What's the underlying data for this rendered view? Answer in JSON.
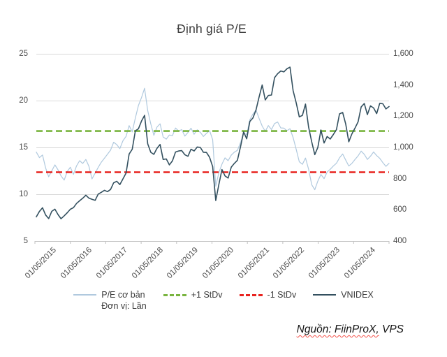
{
  "chart_data": {
    "type": "line",
    "title": "Định giá P/E",
    "x_tick_labels": [
      "01/05/2015",
      "01/05/2016",
      "01/05/2017",
      "01/05/2018",
      "01/05/2019",
      "01/05/2020",
      "01/05/2021",
      "01/05/2022",
      "01/05/2023",
      "01/05/2024"
    ],
    "left_axis": {
      "min": 5,
      "max": 25,
      "ticks": [
        25,
        20,
        15,
        10,
        5
      ],
      "tick_labels": [
        "25",
        "20",
        "15",
        "10",
        "5"
      ]
    },
    "right_axis": {
      "min": 400,
      "max": 1600,
      "ticks": [
        1600,
        1400,
        1200,
        1000,
        800,
        600,
        400
      ],
      "tick_labels": [
        "1,600",
        "1,400",
        "1,200",
        "1,000",
        "800",
        "600",
        "400"
      ]
    },
    "series": [
      {
        "name": "P/E cơ bản",
        "axis": "left",
        "color": "#b0c9de",
        "width": 1.2,
        "values": [
          14.5,
          13.8,
          14.3,
          12.8,
          11.9,
          12.5,
          13.1,
          12.7,
          12.0,
          11.5,
          12.3,
          12.8,
          12.2,
          12.9,
          13.5,
          13.3,
          13.6,
          13.0,
          11.6,
          12.3,
          12.8,
          13.4,
          13.8,
          14.3,
          14.8,
          15.6,
          15.3,
          15.0,
          15.8,
          16.2,
          17.2,
          16.6,
          18.2,
          19.5,
          20.4,
          21.3,
          18.8,
          17.4,
          16.3,
          17.1,
          17.5,
          16.0,
          15.9,
          16.4,
          16.2,
          17.0,
          16.8,
          16.9,
          16.3,
          16.7,
          17.1,
          16.5,
          16.8,
          16.6,
          16.2,
          16.4,
          16.8,
          15.9,
          10.9,
          12.4,
          13.3,
          14.0,
          13.5,
          14.3,
          14.6,
          14.8,
          15.5,
          16.6,
          16.4,
          18.0,
          18.6,
          19.0,
          18.2,
          17.4,
          16.8,
          17.3,
          17.0,
          17.5,
          17.8,
          17.2,
          17.0,
          16.8,
          17.1,
          16.1,
          14.9,
          13.5,
          13.2,
          13.9,
          12.7,
          10.9,
          10.4,
          11.5,
          12.1,
          11.6,
          12.3,
          12.6,
          12.9,
          13.4,
          14.0,
          14.3,
          13.7,
          12.9,
          13.4,
          13.8,
          14.1,
          14.5,
          14.3,
          13.7,
          14.0,
          14.4,
          14.2,
          13.8,
          13.5,
          13.1,
          13.3
        ]
      },
      {
        "name": "VNIDEX",
        "axis": "right",
        "color": "#33505f",
        "width": 1.6,
        "values": [
          555,
          582,
          621,
          566,
          546,
          591,
          602,
          576,
          546,
          561,
          573,
          598,
          620,
          632,
          652,
          675,
          686,
          676,
          665,
          664,
          696,
          711,
          722,
          718,
          737,
          776,
          783,
          771,
          804,
          837,
          949,
          984,
          1110,
          1121,
          1174,
          1204,
          1014,
          961,
          956,
          990,
          1017,
          915,
          927,
          893,
          910,
          965,
          981,
          979,
          960,
          950,
          992,
          984,
          997,
          999,
          971,
          961,
          937,
          882,
          663,
          769,
          864,
          825,
          798,
          882,
          905,
          925,
          1003,
          1104,
          1057,
          1169,
          1191,
          1239,
          1328,
          1409,
          1310,
          1331,
          1342,
          1444,
          1478,
          1498,
          1480,
          1505,
          1522,
          1367,
          1293,
          1198,
          1206,
          1280,
          1132,
          1028,
          948,
          1007,
          1111,
          1024,
          1065,
          1049,
          1075,
          1120,
          1223,
          1224,
          1154,
          1028,
          1094,
          1130,
          1164,
          1252,
          1284,
          1209,
          1262,
          1245,
          1222,
          1280,
          1288,
          1255,
          1262
        ]
      }
    ],
    "reference_lines": [
      {
        "name": "+1 StDv",
        "axis": "left",
        "value": 16.75,
        "color": "#79b43f",
        "style": "dashed"
      },
      {
        "name": "-1 StDv",
        "axis": "left",
        "value": 12.35,
        "color": "#e8231f",
        "style": "dashed"
      }
    ],
    "layout": {
      "grid_color": "#d9d9d9",
      "axis_color": "#c2c2c2",
      "legend_position": "bottom",
      "grid_on": true,
      "jitter_amplitudes": [
        0.13,
        9
      ]
    }
  },
  "legend": {
    "unit_note": "Đơn vị: Lần"
  },
  "footer": {
    "source_underlined": "Nguồn: FiinProX,",
    "source_rest": "VPS"
  }
}
